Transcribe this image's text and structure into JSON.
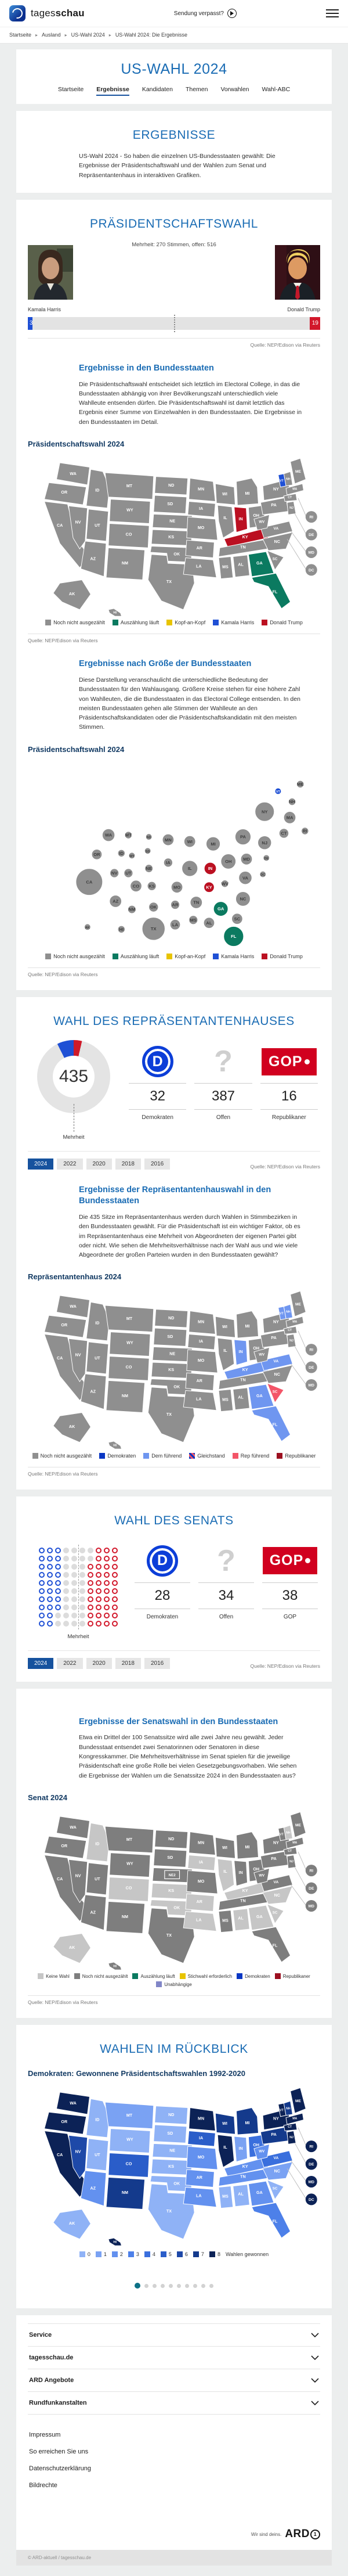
{
  "header": {
    "brand_prefix": "tages",
    "brand_suffix": "schau",
    "sendung_verpasst": "Sendung verpasst?",
    "breadcrumb": [
      "Startseite",
      "Ausland",
      "US-Wahl 2024",
      "US-Wahl 2024: Die Ergebnisse"
    ]
  },
  "nav": {
    "title": "US-WAHL 2024",
    "tabs": [
      {
        "label": "Startseite",
        "active": false
      },
      {
        "label": "Ergebnisse",
        "active": true
      },
      {
        "label": "Kandidaten",
        "active": false
      },
      {
        "label": "Themen",
        "active": false
      },
      {
        "label": "Vorwahlen",
        "active": false
      },
      {
        "label": "Wahl-ABC",
        "active": false
      }
    ]
  },
  "intro": {
    "title": "ERGEBNISSE",
    "text": "US-Wahl 2024 - So haben die einzelnen US-Bundesstaaten gewählt: Die Ergebnisse der Präsidentschaftswahl und der Wahlen zum Senat und Repräsentantenhaus in interaktiven Grafiken."
  },
  "president": {
    "title": "PRÄSIDENTSCHAFTSWAHL",
    "majority_note": "Mehrheit: 270 Stimmen, offen: 516",
    "harris": {
      "name": "Kamala Harris",
      "votes": "3"
    },
    "trump": {
      "name": "Donald Trump",
      "votes": "19"
    },
    "source": "Quelle: NEP/Edison via Reuters",
    "states_heading": "Ergebnisse in den Bundesstaaten",
    "states_text": "Die Präsidentschaftswahl entscheidet sich letztlich im Electoral College, in das die Bundesstaaten abhängig von ihrer Bevölkerungszahl unterschiedlich viele Wahlleute entsenden dürfen. Die Präsidentschaftswahl ist damit letztlich das Ergebnis einer Summe von Einzelwahlen in den Bundesstaaten. Die Ergebnisse in den Bundesstaaten im Detail.",
    "map_title": "Präsidentschaftswahl 2024",
    "size_heading": "Ergebnisse nach Größe der Bundesstaaten",
    "size_text": "Diese Darstellung veranschaulicht die unterschiedliche Bedeutung der Bundesstaaten für den Wahlausgang. Größere Kreise stehen für eine höhere Zahl von Wahlleuten, die die Bundesstaaten in das Electoral College entsenden. In den meisten Bundesstaaten gehen alle Stimmen der Wahlleute an den Präsidentschaftskandidaten oder die Präsidentschaftskandidatin mit den meisten Stimmen.",
    "bubble_map_title": "Präsidentschaftswahl 2024"
  },
  "house": {
    "title": "WAHL DES REPRÄSENTANTENHAUSES",
    "total": "435",
    "dem_seats": 32,
    "rep_seats": 16,
    "majority_label": "Mehrheit",
    "stats": [
      {
        "logo": "dem",
        "value": "32",
        "label": "Demokraten"
      },
      {
        "logo": "question",
        "value": "387",
        "label": "Offen"
      },
      {
        "logo": "gop",
        "value": "16",
        "label": "Republikaner"
      }
    ],
    "years": [
      {
        "label": "2024",
        "active": true
      },
      {
        "label": "2022",
        "active": false
      },
      {
        "label": "2020",
        "active": false
      },
      {
        "label": "2018",
        "active": false
      },
      {
        "label": "2016",
        "active": false
      }
    ],
    "source": "Quelle: NEP/Edison via Reuters",
    "states_heading": "Ergebnisse der Repräsentantenhauswahl in den Bundesstaaten",
    "states_text": "Die 435 Sitze im Repräsentantenhaus werden durch Wahlen in Stimmbezirken in den Bundesstaaten gewählt. Für die Präsidentschaft ist ein wichtiger Faktor, ob es im Repräsentantenhaus eine Mehrheit von Abgeordneten der eigenen Partei gibt oder nicht. Wie sehen die Mehrheitsverhältnisse nach der Wahl aus und wie viele Abgeordnete der großen Parteien wurden in den Bundesstaaten gewählt?",
    "map_title": "Repräsentantenhaus 2024"
  },
  "senate": {
    "title": "WAHL DES SENATS",
    "majority_label": "Mehrheit",
    "seats": {
      "dem": 28,
      "open": 34,
      "gop": 38
    },
    "stats": [
      {
        "logo": "dem",
        "value": "28",
        "label": "Demokraten"
      },
      {
        "logo": "question",
        "value": "34",
        "label": "Offen"
      },
      {
        "logo": "gop",
        "value": "38",
        "label": "GOP"
      }
    ],
    "years": [
      {
        "label": "2024",
        "active": true
      },
      {
        "label": "2022",
        "active": false
      },
      {
        "label": "2020",
        "active": false
      },
      {
        "label": "2018",
        "active": false
      },
      {
        "label": "2016",
        "active": false
      }
    ],
    "source": "Quelle: NEP/Edison via Reuters",
    "states_heading": "Ergebnisse der Senatswahl in den Bundesstaaten",
    "states_text": "Etwa ein Drittel der 100 Senatssitze wird alle zwei Jahre neu gewählt. Jeder Bundesstaat entsendet zwei Senatorinnen oder Senatoren in diese Kongresskammer. Die Mehrheitsverhältnisse im Senat spielen für die jeweilige Präsidentschaft eine große Rolle bei vielen Gesetzgebungsvorhaben. Wie sehen die Ergebnisse der Wahlen um die Senatssitze 2024 in den Bundesstaaten aus?",
    "map_title": "Senat 2024"
  },
  "retrospect": {
    "title": "WAHLEN IM RÜCKBLICK",
    "subtitle": "Demokraten: Gewonnene Präsidentschaftswahlen 1992-2020",
    "legend_suffix": "Wahlen gewonnen",
    "dots_total": 10,
    "active_dot": 0
  },
  "maps": {
    "president": {
      "default": "pending",
      "states": {
        "VT": "harris",
        "IN": "trump",
        "KY": "trump",
        "GA": "counting",
        "FL": "counting"
      },
      "palette": {
        "pending": "#8f8f8f",
        "counting": "#0b7a60",
        "tossup": "#e8c400",
        "harris": "#1f50d5",
        "trump": "#bb1021"
      },
      "circles": [
        "RI",
        "DE",
        "MD",
        "DC"
      ],
      "legend": [
        {
          "label": "Noch nicht ausgezählt",
          "color": "#8f8f8f"
        },
        {
          "label": "Auszählung läuft",
          "color": "#0b7a60"
        },
        {
          "label": "Kopf-an-Kopf",
          "color": "#e8c400"
        },
        {
          "label": "Kamala Harris",
          "color": "#1f50d5"
        },
        {
          "label": "Donald Trump",
          "color": "#bb1021"
        }
      ]
    },
    "house": {
      "default": "pending",
      "states": {
        "VT": "dem_lead",
        "NH": "dem_lead",
        "IN": "dem_lead",
        "KY": "dem_lead",
        "VA": "dem_lead",
        "GA": "dem_lead",
        "FL": "dem_lead",
        "SC": "rep_lead"
      },
      "palette": {
        "pending": "#8f8f8f",
        "dem": "#0a37c4",
        "dem_lead": "#6f96f0",
        "rep_lead": "#f35568",
        "rep": "#9c1020"
      },
      "circles": [
        "RI",
        "DE",
        "MD"
      ],
      "legend": [
        {
          "label": "Noch nicht ausgezählt",
          "color": "#8f8f8f"
        },
        {
          "label": "Demokraten",
          "color": "#0a37c4"
        },
        {
          "label": "Dem führend",
          "color": "#6f96f0"
        },
        {
          "label": "Gleichstand",
          "striped": true
        },
        {
          "label": "Rep führend",
          "color": "#f35568"
        },
        {
          "label": "Republikaner",
          "color": "#9c1020"
        }
      ]
    },
    "senate": {
      "default": "pending",
      "states": {
        "ID": "none",
        "IA": "none",
        "IL": "none",
        "KY": "none",
        "CO": "none",
        "KS": "none",
        "OK": "none",
        "AR": "none",
        "LA": "none",
        "AL": "none",
        "GA": "none",
        "SC": "none",
        "NC": "none",
        "NH": "none",
        "AK": "none"
      },
      "palette": {
        "none": "#c6c6c6",
        "pending": "#7e7e7e",
        "counting": "#0b7a60",
        "runoff": "#e8c400",
        "dem": "#0a37c4",
        "rep": "#9c1020",
        "ind": "#8186c7"
      },
      "circles": [
        "RI",
        "DE",
        "MD"
      ],
      "ne2": true,
      "legend": [
        {
          "label": "Keine Wahl",
          "color": "#c6c6c6"
        },
        {
          "label": "Noch nicht ausgezählt",
          "color": "#7e7e7e"
        },
        {
          "label": "Auszählung läuft",
          "color": "#0b7a60"
        },
        {
          "label": "Stichwahl erforderlich",
          "color": "#e8c400"
        },
        {
          "label": "Demokraten",
          "color": "#0a37c4"
        },
        {
          "label": "Republikaner",
          "color": "#9c1020"
        },
        {
          "label": "Unabhängige",
          "color": "#8186c7"
        }
      ]
    },
    "retrospect": {
      "type": "ramp",
      "default": 0,
      "ramp": [
        "#8fb2f6",
        "#7aa2f3",
        "#6391ef",
        "#4d80e9",
        "#3a6fdd",
        "#2a5dc9",
        "#1e49a8",
        "#143a8c",
        "#0c2256"
      ],
      "legend_values": [
        "0",
        "1",
        "2",
        "3",
        "4",
        "5",
        "6",
        "7",
        "8"
      ],
      "circles": [
        "RI",
        "DE",
        "MD",
        "DC"
      ],
      "states": {
        "WA": 8,
        "OR": 8,
        "CA": 8,
        "MN": 8,
        "IL": 8,
        "NY": 8,
        "ME": 8,
        "VT": 8,
        "MA": 8,
        "CT": 8,
        "RI": 8,
        "NJ": 8,
        "DE": 8,
        "MD": 8,
        "DC": 8,
        "HI": 8,
        "WI": 7,
        "MI": 7,
        "PA": 7,
        "NM": 7,
        "NH": 7,
        "NV": 6,
        "IA": 5,
        "CO": 5,
        "OH": 4,
        "VA": 4,
        "FL": 3,
        "AR": 2,
        "LA": 2,
        "MO": 2,
        "TN": 2,
        "KY": 2,
        "WV": 2,
        "GA": 2,
        "AZ": 2,
        "MT": 1,
        "IN": 1,
        "NC": 1,
        "TX": 0,
        "OK": 0,
        "KS": 0,
        "NE": 0,
        "ND": 0,
        "SD": 0,
        "ID": 0,
        "WY": 0,
        "UT": 0,
        "AL": 0,
        "MS": 0,
        "SC": 0,
        "AK": 0
      }
    }
  },
  "footer": {
    "accordions": [
      "Service",
      "tagesschau.de",
      "ARD Angebote",
      "Rundfunkanstalten"
    ],
    "links": [
      "Impressum",
      "So erreichen Sie uns",
      "Datenschutzerklärung",
      "Bildrechte"
    ],
    "ard_claim": "Wir sind deins.",
    "ard_logo": "ARD",
    "copyright": "© ARD-aktuell / tagesschau.de"
  }
}
